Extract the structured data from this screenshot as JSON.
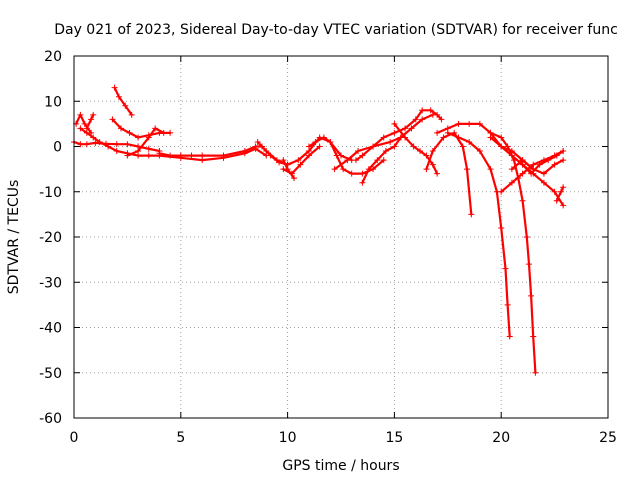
{
  "chart_data": {
    "type": "scatter",
    "title": "Day 021 of 2023, Sidereal Day-to-day VTEC variation (SDTVAR) for receiver func",
    "xlabel": "GPS time / hours",
    "ylabel": "SDTVAR / TECUs",
    "xlim": [
      0,
      25
    ],
    "ylim": [
      -60,
      20
    ],
    "xticks": [
      0,
      5,
      10,
      15,
      20,
      25
    ],
    "yticks": [
      -60,
      -50,
      -40,
      -30,
      -20,
      -10,
      0,
      10,
      20
    ],
    "grid": true,
    "marker": "+",
    "color": "#ff0000",
    "series": [
      {
        "name": "s1",
        "x": [
          0,
          0.3,
          0.6,
          1.0,
          1.5,
          2.0,
          2.5,
          3.0,
          3.5,
          4.0
        ],
        "y": [
          1,
          0.5,
          0.5,
          0.8,
          0.6,
          0.5,
          0.5,
          0,
          -0.5,
          -1
        ]
      },
      {
        "name": "s2",
        "x": [
          0.1,
          0.3,
          0.5,
          0.8
        ],
        "y": [
          5,
          7,
          5,
          3
        ]
      },
      {
        "name": "s3",
        "x": [
          0.3,
          0.6,
          0.9,
          1.2,
          1.6,
          2.0,
          2.5,
          3.0,
          3.5,
          4.0,
          5.0,
          6.0,
          7.0,
          8.0,
          8.5,
          9.0
        ],
        "y": [
          4,
          3,
          2,
          1,
          0,
          -1,
          -1.5,
          -2,
          -2,
          -2,
          -2.5,
          -3,
          -2.5,
          -1.5,
          -0.5,
          -2
        ]
      },
      {
        "name": "s4",
        "x": [
          0.6,
          0.8,
          0.9
        ],
        "y": [
          4,
          6,
          7
        ]
      },
      {
        "name": "s5",
        "x": [
          1.9,
          2.1,
          2.4,
          2.7
        ],
        "y": [
          13,
          11,
          9,
          7
        ]
      },
      {
        "name": "s6",
        "x": [
          1.8,
          2.2,
          2.6,
          3.0,
          3.5,
          4.0,
          4.5
        ],
        "y": [
          6,
          4,
          3,
          2,
          2.5,
          3,
          3
        ]
      },
      {
        "name": "s7",
        "x": [
          2.5,
          3.0,
          3.5,
          3.8,
          4.2
        ],
        "y": [
          -2,
          -1,
          2,
          4,
          3
        ]
      },
      {
        "name": "s8",
        "x": [
          4.0,
          4.5,
          5.0,
          5.5,
          6.0,
          7.0,
          8.0,
          8.5,
          8.8,
          9.2,
          9.6,
          10.0
        ],
        "y": [
          -1.5,
          -2,
          -2,
          -2,
          -2,
          -2,
          -1,
          0,
          0,
          -2,
          -3.5,
          -4
        ]
      },
      {
        "name": "s9",
        "x": [
          8.6,
          9.0,
          9.5,
          10.0,
          10.5,
          11.0,
          11.5,
          12.0,
          12.5,
          13.0
        ],
        "y": [
          1,
          -1,
          -3,
          -4,
          -3,
          -1,
          2,
          1,
          -2,
          -3
        ]
      },
      {
        "name": "s10",
        "x": [
          9.8,
          10.2,
          10.6,
          11.0,
          11.5
        ],
        "y": [
          -5,
          -6,
          -4,
          -2,
          0
        ]
      },
      {
        "name": "s11",
        "x": [
          9.8,
          10.0,
          10.3
        ],
        "y": [
          -3,
          -5,
          -7
        ]
      },
      {
        "name": "s12",
        "x": [
          11.0,
          11.3,
          11.7,
          12.0,
          12.3,
          12.6,
          13.0,
          13.5,
          14.0,
          14.5
        ],
        "y": [
          0,
          1,
          2,
          1,
          -2,
          -5,
          -6,
          -6,
          -5,
          -3
        ]
      },
      {
        "name": "s13",
        "x": [
          12.2,
          12.8,
          13.3,
          14.0,
          14.8,
          15.3,
          15.8,
          16.3,
          16.8
        ],
        "y": [
          -5,
          -3,
          -1,
          0,
          1,
          2,
          4,
          6,
          7
        ]
      },
      {
        "name": "s14",
        "x": [
          13.2,
          13.5,
          14.0,
          14.5,
          15.0,
          15.5,
          16.0,
          16.3,
          16.7,
          17.0,
          17.2
        ],
        "y": [
          -3,
          -2,
          0,
          2,
          3,
          4,
          6,
          8,
          8,
          7,
          6
        ]
      },
      {
        "name": "s15",
        "x": [
          13.5,
          13.8,
          14.2,
          14.6,
          15.0,
          15.3
        ],
        "y": [
          -8,
          -5,
          -3,
          -1,
          0,
          2
        ]
      },
      {
        "name": "s16",
        "x": [
          15.0,
          15.5,
          15.9,
          16.2,
          16.5,
          16.8,
          17.0
        ],
        "y": [
          5,
          2,
          0,
          -1,
          -2,
          -4,
          -6
        ]
      },
      {
        "name": "s17",
        "x": [
          16.5,
          16.8,
          17.3,
          17.8,
          18.2,
          18.4,
          18.6
        ],
        "y": [
          -5,
          -1,
          2,
          3,
          0,
          -5,
          -15
        ]
      },
      {
        "name": "s18",
        "x": [
          17.0,
          17.5,
          18.0,
          18.5,
          19.0,
          19.5,
          20.0,
          20.5,
          21.0,
          21.5
        ],
        "y": [
          3,
          4,
          5,
          5,
          5,
          3,
          0,
          -1,
          -3,
          -5
        ]
      },
      {
        "name": "s19",
        "x": [
          17.5,
          18.0,
          18.5,
          19.0,
          19.5,
          19.8,
          20.0,
          20.2,
          20.3,
          20.4
        ],
        "y": [
          3,
          2,
          1,
          -1,
          -5,
          -10,
          -18,
          -27,
          -35,
          -42
        ]
      },
      {
        "name": "s20",
        "x": [
          19.5,
          20.0,
          20.3,
          20.6,
          20.8,
          21.0,
          21.2,
          21.3,
          21.4,
          21.5,
          21.6
        ],
        "y": [
          3,
          2,
          0,
          -3,
          -7,
          -12,
          -20,
          -26,
          -33,
          -42,
          -50
        ]
      },
      {
        "name": "s21",
        "x": [
          20.0,
          20.5,
          21.0,
          21.5,
          22.0,
          22.5,
          22.9
        ],
        "y": [
          -10,
          -8,
          -6,
          -4,
          -3,
          -2,
          -1
        ]
      },
      {
        "name": "s22",
        "x": [
          19.5,
          20.0,
          20.5,
          21.0,
          21.5,
          22.0,
          22.5,
          22.9
        ],
        "y": [
          2,
          0,
          -2,
          -4,
          -6,
          -8,
          -10,
          -13
        ]
      },
      {
        "name": "s23",
        "x": [
          20.5,
          21.0,
          21.5,
          22.0,
          22.5,
          22.9
        ],
        "y": [
          -5,
          -3,
          -5,
          -6,
          -4,
          -3
        ]
      },
      {
        "name": "s24",
        "x": [
          21.0,
          21.4,
          21.8,
          22.2,
          22.6,
          22.9
        ],
        "y": [
          -4,
          -6,
          -4,
          -3,
          -2,
          -1
        ]
      },
      {
        "name": "s25",
        "x": [
          22.6,
          22.8,
          22.9
        ],
        "y": [
          -12,
          -10,
          -9
        ]
      }
    ]
  }
}
